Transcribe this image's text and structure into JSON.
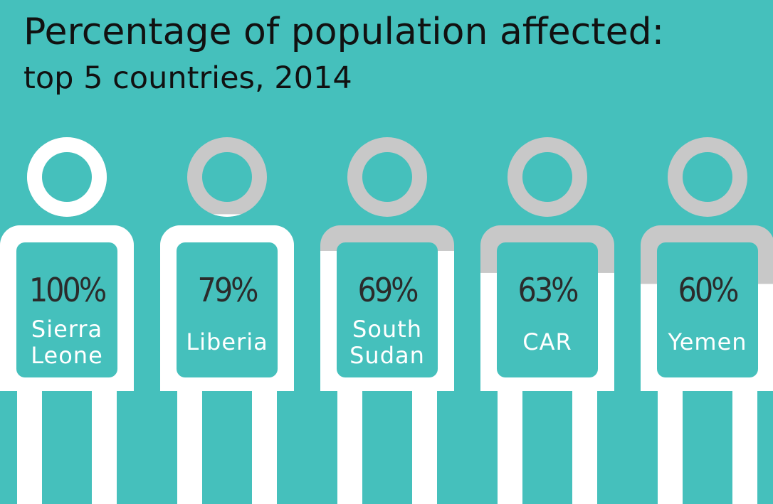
{
  "title": "Percentage of population affected:",
  "subtitle": "top 5 countries, 2014",
  "colors": {
    "background": "#45c0bc",
    "filled": "#ffffff",
    "unfilled": "#c8c8c8",
    "percent_text": "#2b2b2b",
    "name_text": "#ffffff"
  },
  "chart_data": {
    "type": "bar",
    "title": "Percentage of population affected:",
    "subtitle": "top 5 countries, 2014",
    "unit": "%",
    "ylim": [
      0,
      100
    ],
    "categories": [
      "Sierra Leone",
      "Liberia",
      "South Sudan",
      "CAR",
      "Yemen"
    ],
    "values": [
      100,
      79,
      69,
      63,
      60
    ],
    "value_labels": [
      "100%",
      "79%",
      "69%",
      "63%",
      "60%"
    ],
    "name_lines": [
      [
        "Sierra",
        "Leone"
      ],
      [
        "Liberia"
      ],
      [
        "South",
        "Sudan"
      ],
      [
        "CAR"
      ],
      [
        "Yemen"
      ]
    ]
  }
}
